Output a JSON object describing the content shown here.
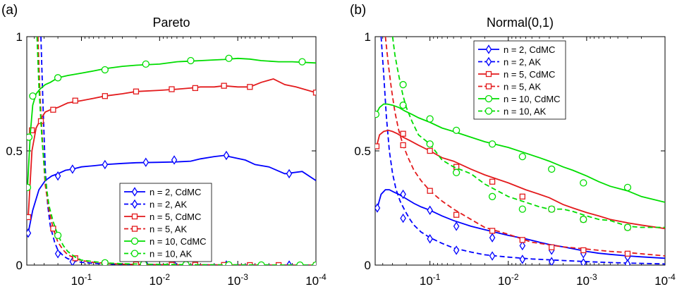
{
  "chart_data": [
    {
      "panel_label": "(a)",
      "type": "line",
      "title": "Pareto",
      "xscale": "log-reversed",
      "xlim": [
        0.5,
        0.0001
      ],
      "ylim": [
        0,
        1
      ],
      "x_ticks": [
        {
          "value": 0.1,
          "base": "10",
          "exp": "-1"
        },
        {
          "value": 0.01,
          "base": "10",
          "exp": "-2"
        },
        {
          "value": 0.001,
          "base": "10",
          "exp": "-3"
        },
        {
          "value": 0.0001,
          "base": "10",
          "exp": "-4"
        }
      ],
      "y_ticks": [
        {
          "value": 0,
          "label": "0"
        },
        {
          "value": 0.5,
          "label": "0.5"
        },
        {
          "value": 1,
          "label": "1"
        }
      ],
      "legend_position": "bottom-center",
      "series": [
        {
          "name": "n = 2, CdMC",
          "color": "#0000ff",
          "dash": "solid",
          "marker": "diamond",
          "x": [
            0.48,
            0.42,
            0.35,
            0.29,
            0.24,
            0.2,
            0.16,
            0.13,
            0.1,
            0.07,
            0.05,
            0.03,
            0.02,
            0.01,
            0.006,
            0.004,
            0.003,
            0.002,
            0.0015,
            0.0011,
            0.0008,
            0.0006,
            0.0004,
            0.00025,
            0.00015,
            0.0001
          ],
          "y": [
            0.14,
            0.24,
            0.33,
            0.37,
            0.39,
            0.4,
            0.415,
            0.42,
            0.43,
            0.435,
            0.44,
            0.445,
            0.448,
            0.45,
            0.452,
            0.455,
            0.465,
            0.475,
            0.48,
            0.47,
            0.46,
            0.44,
            0.43,
            0.4,
            0.41,
            0.37
          ],
          "marker_x": [
            0.48,
            0.2,
            0.13,
            0.05,
            0.015,
            0.0065,
            0.0014,
            0.00022
          ],
          "marker_y": [
            0.14,
            0.39,
            0.42,
            0.44,
            0.45,
            0.46,
            0.48,
            0.4
          ]
        },
        {
          "name": "n = 2, AK",
          "color": "#0000ff",
          "dash": "dashed",
          "marker": "diamond",
          "x": [
            0.33,
            0.31,
            0.29,
            0.27,
            0.25,
            0.22,
            0.2,
            0.17,
            0.15,
            0.12,
            0.1,
            0.07,
            0.05,
            0.03,
            0.02,
            0.01,
            0.005,
            0.002,
            0.001,
            0.0005,
            0.0002,
            0.0001
          ],
          "y": [
            1.0,
            0.7,
            0.42,
            0.26,
            0.17,
            0.1,
            0.065,
            0.04,
            0.028,
            0.018,
            0.012,
            0.008,
            0.005,
            0.004,
            0.003,
            0.002,
            0.001,
            0.001,
            0.0005,
            0.0005,
            0.0,
            0.0
          ],
          "marker_x": [
            0.2,
            0.13,
            0.05,
            0.015,
            0.0065,
            0.0014,
            0.00022
          ],
          "marker_y": [
            0.05,
            0.015,
            0.003,
            0.002,
            0.001,
            0.0005,
            0.0
          ]
        },
        {
          "name": "n = 5, CdMC",
          "color": "#e31a1c",
          "dash": "solid",
          "marker": "square",
          "x": [
            0.48,
            0.43,
            0.38,
            0.33,
            0.29,
            0.25,
            0.2,
            0.15,
            0.1,
            0.07,
            0.05,
            0.03,
            0.02,
            0.01,
            0.006,
            0.004,
            0.003,
            0.002,
            0.0015,
            0.001,
            0.0007,
            0.0005,
            0.00035,
            0.00025,
            0.00018,
            0.0001
          ],
          "y": [
            0.21,
            0.5,
            0.6,
            0.64,
            0.67,
            0.68,
            0.69,
            0.71,
            0.72,
            0.73,
            0.74,
            0.75,
            0.76,
            0.765,
            0.77,
            0.775,
            0.78,
            0.78,
            0.785,
            0.78,
            0.78,
            0.8,
            0.815,
            0.79,
            0.78,
            0.755
          ],
          "marker_x": [
            0.48,
            0.43,
            0.33,
            0.23,
            0.12,
            0.05,
            0.02,
            0.007,
            0.0035,
            0.0015,
            0.0007,
            0.0001
          ],
          "marker_y": [
            0.21,
            0.59,
            0.63,
            0.68,
            0.72,
            0.74,
            0.76,
            0.77,
            0.775,
            0.785,
            0.78,
            0.755
          ]
        },
        {
          "name": "n = 5, AK",
          "color": "#e31a1c",
          "dash": "dashed",
          "marker": "square",
          "x": [
            0.36,
            0.34,
            0.31,
            0.29,
            0.26,
            0.23,
            0.2,
            0.17,
            0.15,
            0.12,
            0.1,
            0.07,
            0.05,
            0.03,
            0.01,
            0.005,
            0.002,
            0.001,
            0.0005,
            0.0001
          ],
          "y": [
            1.0,
            0.75,
            0.5,
            0.35,
            0.24,
            0.16,
            0.1,
            0.065,
            0.045,
            0.03,
            0.02,
            0.012,
            0.008,
            0.004,
            0.002,
            0.001,
            0.001,
            0.0005,
            0.0,
            0.0
          ],
          "marker_x": [
            0.23,
            0.12,
            0.05,
            0.02,
            0.007,
            0.0035,
            0.0015,
            0.0007,
            0.0003,
            0.0001
          ],
          "marker_y": [
            0.16,
            0.03,
            0.008,
            0.003,
            0.001,
            0.001,
            0.0005,
            0.0,
            0.0,
            0.0
          ]
        },
        {
          "name": "n = 10, CdMC",
          "color": "#00dd00",
          "dash": "solid",
          "marker": "circle",
          "x": [
            0.49,
            0.45,
            0.42,
            0.38,
            0.34,
            0.29,
            0.25,
            0.2,
            0.15,
            0.1,
            0.07,
            0.05,
            0.03,
            0.02,
            0.01,
            0.006,
            0.004,
            0.003,
            0.002,
            0.0015,
            0.001,
            0.0007,
            0.0005,
            0.0003,
            0.0002,
            0.0001
          ],
          "y": [
            0.34,
            0.58,
            0.7,
            0.75,
            0.77,
            0.79,
            0.8,
            0.82,
            0.83,
            0.84,
            0.85,
            0.86,
            0.87,
            0.875,
            0.88,
            0.89,
            0.893,
            0.895,
            0.898,
            0.9,
            0.905,
            0.902,
            0.895,
            0.89,
            0.89,
            0.885
          ],
          "marker_x": [
            0.49,
            0.47,
            0.42,
            0.2,
            0.05,
            0.015,
            0.004,
            0.0013,
            0.00015
          ],
          "marker_y": [
            0.34,
            0.56,
            0.74,
            0.82,
            0.855,
            0.88,
            0.895,
            0.905,
            0.89
          ]
        },
        {
          "name": "n = 10, AK",
          "color": "#00dd00",
          "dash": "dashed",
          "marker": "circle",
          "x": [
            0.37,
            0.35,
            0.32,
            0.29,
            0.26,
            0.23,
            0.2,
            0.17,
            0.15,
            0.12,
            0.1,
            0.07,
            0.05,
            0.03,
            0.01,
            0.005,
            0.002,
            0.001,
            0.0005,
            0.0001
          ],
          "y": [
            1.0,
            0.78,
            0.55,
            0.38,
            0.26,
            0.19,
            0.13,
            0.085,
            0.06,
            0.035,
            0.022,
            0.015,
            0.01,
            0.006,
            0.003,
            0.002,
            0.001,
            0.001,
            0.0005,
            0.0
          ],
          "marker_x": [
            0.2,
            0.05,
            0.016,
            0.0046,
            0.0013,
            0.0005,
            0.00016,
            0.0001
          ],
          "marker_y": [
            0.13,
            0.01,
            0.004,
            0.002,
            0.001,
            0.0005,
            0.0,
            0.0
          ]
        }
      ]
    },
    {
      "panel_label": "(b)",
      "type": "line",
      "title": "Normal(0,1)",
      "xscale": "log-reversed",
      "xlim": [
        0.5,
        0.0001
      ],
      "ylim": [
        0,
        1
      ],
      "x_ticks": [
        {
          "value": 0.1,
          "base": "10",
          "exp": "-1"
        },
        {
          "value": 0.01,
          "base": "10",
          "exp": "-2"
        },
        {
          "value": 0.001,
          "base": "10",
          "exp": "-3"
        },
        {
          "value": 0.0001,
          "base": "10",
          "exp": "-4"
        }
      ],
      "y_ticks": [
        {
          "value": 0,
          "label": "0"
        },
        {
          "value": 0.5,
          "label": "0.5"
        },
        {
          "value": 1,
          "label": "1"
        }
      ],
      "legend_position": "top-center",
      "series": [
        {
          "name": "n = 2, CdMC",
          "color": "#0000ff",
          "dash": "solid",
          "marker": "diamond",
          "x": [
            0.47,
            0.42,
            0.37,
            0.33,
            0.29,
            0.25,
            0.2,
            0.16,
            0.13,
            0.1,
            0.07,
            0.05,
            0.03,
            0.02,
            0.01,
            0.006,
            0.004,
            0.003,
            0.002,
            0.0015,
            0.001,
            0.0007,
            0.0005,
            0.0003,
            0.0002,
            0.0001
          ],
          "y": [
            0.25,
            0.31,
            0.33,
            0.33,
            0.32,
            0.31,
            0.29,
            0.27,
            0.255,
            0.24,
            0.215,
            0.195,
            0.17,
            0.155,
            0.13,
            0.115,
            0.1,
            0.09,
            0.08,
            0.072,
            0.06,
            0.052,
            0.047,
            0.04,
            0.036,
            0.03
          ],
          "marker_x": [
            0.47,
            0.22,
            0.1,
            0.046,
            0.016,
            0.0066,
            0.0028,
            0.0011,
            0.0003
          ],
          "marker_y": [
            0.25,
            0.31,
            0.24,
            0.17,
            0.12,
            0.085,
            0.065,
            0.05,
            0.035
          ]
        },
        {
          "name": "n = 2, AK",
          "color": "#0000ff",
          "dash": "dashed",
          "marker": "diamond",
          "x": [
            0.42,
            0.39,
            0.36,
            0.33,
            0.3,
            0.27,
            0.24,
            0.21,
            0.18,
            0.16,
            0.13,
            0.1,
            0.07,
            0.05,
            0.03,
            0.02,
            0.01,
            0.005,
            0.002,
            0.001,
            0.0005,
            0.0003,
            0.0001
          ],
          "y": [
            1.0,
            0.84,
            0.65,
            0.5,
            0.4,
            0.33,
            0.28,
            0.24,
            0.2,
            0.175,
            0.145,
            0.12,
            0.095,
            0.075,
            0.057,
            0.045,
            0.035,
            0.027,
            0.02,
            0.015,
            0.011,
            0.009,
            0.005
          ],
          "marker_x": [
            0.22,
            0.1,
            0.046,
            0.016,
            0.0066,
            0.0028,
            0.0011,
            0.0003
          ],
          "marker_y": [
            0.205,
            0.115,
            0.065,
            0.04,
            0.025,
            0.015,
            0.01,
            0.005
          ]
        },
        {
          "name": "n = 5, CdMC",
          "color": "#e31a1c",
          "dash": "solid",
          "marker": "square",
          "x": [
            0.48,
            0.44,
            0.39,
            0.34,
            0.3,
            0.26,
            0.22,
            0.18,
            0.14,
            0.1,
            0.07,
            0.05,
            0.03,
            0.02,
            0.01,
            0.006,
            0.004,
            0.003,
            0.002,
            0.0015,
            0.001,
            0.0007,
            0.0005,
            0.0003,
            0.0002,
            0.0001
          ],
          "y": [
            0.52,
            0.57,
            0.585,
            0.59,
            0.585,
            0.575,
            0.56,
            0.545,
            0.525,
            0.5,
            0.47,
            0.455,
            0.42,
            0.395,
            0.36,
            0.33,
            0.31,
            0.295,
            0.265,
            0.25,
            0.23,
            0.215,
            0.2,
            0.185,
            0.175,
            0.16
          ],
          "marker_x": [
            0.48,
            0.22,
            0.1,
            0.046,
            0.016,
            0.0066,
            0.0028,
            0.0011,
            0.0003
          ],
          "marker_y": [
            0.52,
            0.575,
            0.5,
            0.43,
            0.365,
            0.3,
            0.245,
            0.2,
            0.165
          ]
        },
        {
          "name": "n = 5, AK",
          "color": "#e31a1c",
          "dash": "dashed",
          "marker": "square",
          "x": [
            0.37,
            0.34,
            0.31,
            0.28,
            0.25,
            0.22,
            0.19,
            0.16,
            0.13,
            0.1,
            0.07,
            0.05,
            0.03,
            0.02,
            0.01,
            0.005,
            0.002,
            0.001,
            0.0005,
            0.0003,
            0.0001
          ],
          "y": [
            1.0,
            0.88,
            0.77,
            0.67,
            0.59,
            0.525,
            0.47,
            0.415,
            0.37,
            0.325,
            0.28,
            0.245,
            0.2,
            0.165,
            0.135,
            0.1,
            0.08,
            0.07,
            0.06,
            0.055,
            0.04
          ],
          "marker_x": [
            0.22,
            0.1,
            0.046,
            0.016,
            0.0066,
            0.0028,
            0.0011,
            0.0003
          ],
          "marker_y": [
            0.525,
            0.325,
            0.22,
            0.15,
            0.11,
            0.078,
            0.065,
            0.05
          ]
        },
        {
          "name": "n = 10, CdMC",
          "color": "#00dd00",
          "dash": "solid",
          "marker": "circle",
          "x": [
            0.49,
            0.44,
            0.39,
            0.35,
            0.3,
            0.25,
            0.21,
            0.17,
            0.14,
            0.1,
            0.07,
            0.05,
            0.03,
            0.02,
            0.01,
            0.006,
            0.004,
            0.003,
            0.002,
            0.0015,
            0.001,
            0.0007,
            0.0005,
            0.0003,
            0.0002,
            0.0001
          ],
          "y": [
            0.66,
            0.69,
            0.705,
            0.705,
            0.7,
            0.69,
            0.675,
            0.66,
            0.645,
            0.625,
            0.6,
            0.585,
            0.56,
            0.54,
            0.515,
            0.49,
            0.47,
            0.455,
            0.43,
            0.415,
            0.39,
            0.365,
            0.345,
            0.325,
            0.3,
            0.275
          ],
          "marker_x": [
            0.49,
            0.22,
            0.1,
            0.046,
            0.016,
            0.0066,
            0.0028,
            0.0011,
            0.0003
          ],
          "marker_y": [
            0.66,
            0.7,
            0.64,
            0.59,
            0.53,
            0.475,
            0.42,
            0.36,
            0.34
          ]
        },
        {
          "name": "n = 10, AK",
          "color": "#00dd00",
          "dash": "dashed",
          "marker": "circle",
          "x": [
            0.3,
            0.28,
            0.26,
            0.24,
            0.22,
            0.2,
            0.17,
            0.14,
            0.1,
            0.07,
            0.05,
            0.03,
            0.02,
            0.01,
            0.006,
            0.004,
            0.003,
            0.002,
            0.0015,
            0.001,
            0.0007,
            0.0005,
            0.0003,
            0.0002,
            0.0001
          ],
          "y": [
            1.0,
            0.92,
            0.86,
            0.8,
            0.74,
            0.69,
            0.63,
            0.57,
            0.53,
            0.46,
            0.43,
            0.4,
            0.355,
            0.3,
            0.275,
            0.255,
            0.245,
            0.245,
            0.235,
            0.215,
            0.2,
            0.195,
            0.17,
            0.165,
            0.165
          ],
          "marker_x": [
            0.22,
            0.1,
            0.046,
            0.016,
            0.0066,
            0.0028,
            0.0011,
            0.0003
          ],
          "marker_y": [
            0.79,
            0.53,
            0.405,
            0.3,
            0.245,
            0.245,
            0.2,
            0.165
          ]
        }
      ]
    }
  ]
}
